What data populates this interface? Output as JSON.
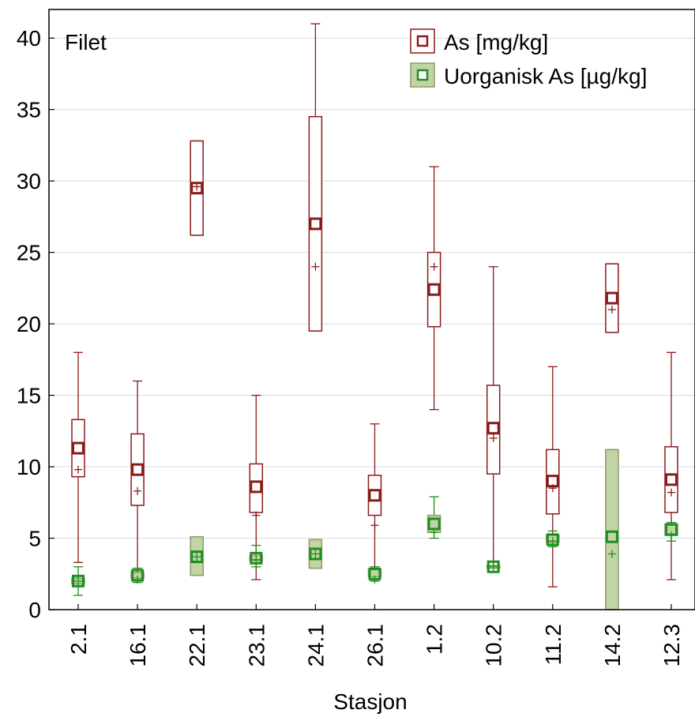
{
  "chart_data": {
    "type": "box",
    "panel_label": "Filet",
    "xlabel": "Stasjon",
    "ylabel": "",
    "ylim": [
      0,
      42
    ],
    "yticks": [
      0,
      5,
      10,
      15,
      20,
      25,
      30,
      35,
      40
    ],
    "grid": "horizontal",
    "legend_position": "top-right",
    "categories": [
      "2.1",
      "16.1",
      "22.1",
      "23.1",
      "24.1",
      "26.1",
      "1.2",
      "10.2",
      "11.2",
      "14.2",
      "12.3"
    ],
    "series": [
      {
        "name": "As [mg/kg]",
        "color": "#8b1a1a",
        "box_style": "outline",
        "boxes": [
          {
            "min": 3.3,
            "q1": 9.3,
            "median": 11.3,
            "mean": 9.8,
            "q3": 13.3,
            "max": 18.0
          },
          {
            "min": 2.4,
            "q1": 7.3,
            "median": 9.8,
            "mean": 8.3,
            "q3": 12.3,
            "max": 16.0
          },
          {
            "min": 26.2,
            "q1": 26.2,
            "median": 29.5,
            "mean": 29.6,
            "q3": 32.8,
            "max": 32.8
          },
          {
            "min": 2.1,
            "q1": 6.8,
            "median": 8.6,
            "mean": 6.6,
            "q3": 10.2,
            "max": 15.0
          },
          {
            "min": 19.5,
            "q1": 19.5,
            "median": 27.0,
            "mean": 24.0,
            "q3": 34.5,
            "max": 41.0
          },
          {
            "min": 2.0,
            "q1": 6.6,
            "median": 8.0,
            "mean": 5.9,
            "q3": 9.4,
            "max": 13.0
          },
          {
            "min": 14.0,
            "q1": 19.8,
            "median": 22.4,
            "mean": 24.0,
            "q3": 25.0,
            "max": 31.0
          },
          {
            "min": 3.0,
            "q1": 9.5,
            "median": 12.7,
            "mean": 12.0,
            "q3": 15.7,
            "max": 24.0
          },
          {
            "min": 1.6,
            "q1": 6.7,
            "median": 9.0,
            "mean": 8.5,
            "q3": 11.2,
            "max": 17.0
          },
          {
            "min": 19.4,
            "q1": 19.4,
            "median": 21.8,
            "mean": 21.0,
            "q3": 24.2,
            "max": 24.2
          },
          {
            "min": 2.1,
            "q1": 6.8,
            "median": 9.1,
            "mean": 8.2,
            "q3": 11.4,
            "max": 18.0
          }
        ]
      },
      {
        "name": "Uorganisk As [µg/kg]",
        "color": "#1e8f1e",
        "box_fill": "#c2d3a6",
        "box_stroke": "#8a9c66",
        "box_style": "filled",
        "boxes": [
          {
            "min": 1.0,
            "q1": 1.8,
            "median": 2.0,
            "mean": 2.0,
            "q3": 2.2,
            "max": 3.0
          },
          {
            "min": 1.9,
            "q1": 2.2,
            "median": 2.4,
            "mean": 2.1,
            "q3": 2.6,
            "max": 2.9
          },
          {
            "min": 2.4,
            "q1": 2.4,
            "median": 3.7,
            "mean": 3.7,
            "q3": 5.1,
            "max": 5.1
          },
          {
            "min": 3.0,
            "q1": 3.4,
            "median": 3.6,
            "mean": 3.5,
            "q3": 3.8,
            "max": 4.5
          },
          {
            "min": 2.9,
            "q1": 2.9,
            "median": 3.9,
            "mean": 3.9,
            "q3": 4.9,
            "max": 4.9
          },
          {
            "min": 2.0,
            "q1": 2.3,
            "median": 2.5,
            "mean": 2.1,
            "q3": 2.8,
            "max": 3.0
          },
          {
            "min": 5.0,
            "q1": 5.4,
            "median": 6.0,
            "mean": 5.4,
            "q3": 6.6,
            "max": 7.9
          },
          {
            "min": 2.9,
            "q1": 2.9,
            "median": 3.0,
            "mean": 3.0,
            "q3": 3.1,
            "max": 3.1
          },
          {
            "min": 4.4,
            "q1": 4.7,
            "median": 4.9,
            "mean": 4.8,
            "q3": 5.2,
            "max": 5.5
          },
          {
            "min": 0.0,
            "q1": 0.0,
            "median": 5.1,
            "mean": 3.9,
            "q3": 11.2,
            "max": 11.2
          },
          {
            "min": 4.8,
            "q1": 5.2,
            "median": 5.6,
            "mean": 5.2,
            "q3": 6.0,
            "max": 6.1
          }
        ]
      }
    ]
  }
}
